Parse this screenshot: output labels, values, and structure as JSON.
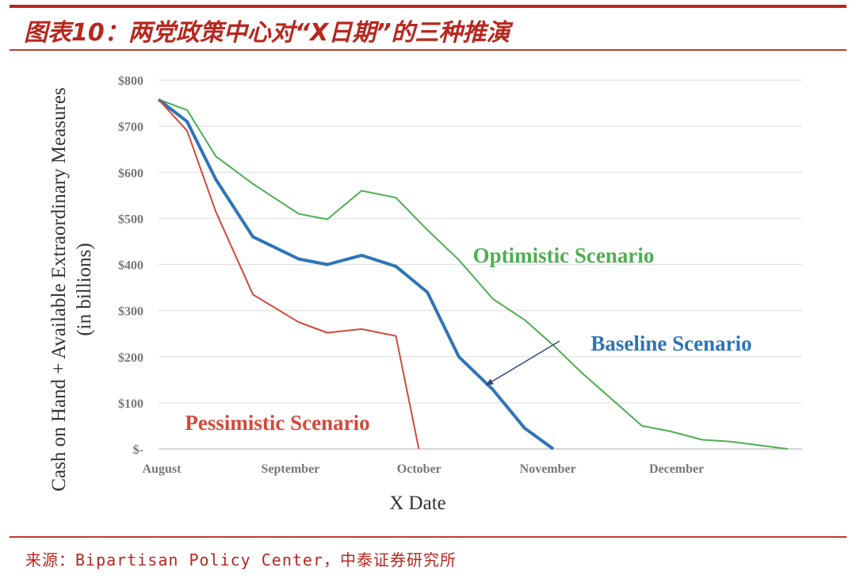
{
  "title": "图表10：两党政策中心对“X日期”的三种推演",
  "source": "来源：Bipartisan Policy Center，中泰证券研究所",
  "chart_data": {
    "type": "line",
    "xlabel": "X Date",
    "ylabel_line1": "Cash on Hand + Available Extraordinary Measures",
    "ylabel_line2": "(in billions)",
    "ylim": [
      0,
      800
    ],
    "y_ticks": [
      {
        "value": 0,
        "label": "$-"
      },
      {
        "value": 100,
        "label": "$100"
      },
      {
        "value": 200,
        "label": "$200"
      },
      {
        "value": 300,
        "label": "$300"
      },
      {
        "value": 400,
        "label": "$400"
      },
      {
        "value": 500,
        "label": "$500"
      },
      {
        "value": 600,
        "label": "$600"
      },
      {
        "value": 700,
        "label": "$700"
      },
      {
        "value": 800,
        "label": "$800"
      }
    ],
    "xlim": [
      0,
      22.5
    ],
    "x_ticks": [
      {
        "value": 0,
        "label": "August"
      },
      {
        "value": 4.5,
        "label": "September"
      },
      {
        "value": 9,
        "label": "October"
      },
      {
        "value": 13.5,
        "label": "November"
      },
      {
        "value": 18,
        "label": "December"
      }
    ],
    "grid": true,
    "series": [
      {
        "name": "Optimistic Scenario",
        "color": "#4caf50",
        "x": [
          0,
          1,
          2,
          3.3,
          4.9,
          5.9,
          7.1,
          8.3,
          9.4,
          10.5,
          11.7,
          12.8,
          13.8,
          14.8,
          15.9,
          16.9,
          17.9,
          19,
          20,
          21,
          22
        ],
        "y": [
          758,
          735,
          635,
          575,
          510,
          498,
          560,
          545,
          475,
          410,
          325,
          280,
          225,
          165,
          105,
          50,
          38,
          20,
          16,
          8,
          0
        ],
        "label_pos": [
          23,
          165
        ],
        "label_size": 27
      },
      {
        "name": "Baseline Scenario",
        "color": "#2f74b8",
        "x": [
          0,
          1,
          2,
          3.3,
          4.9,
          5.9,
          7.1,
          8.3,
          9.4,
          10.5,
          11.7,
          12.8,
          13.8
        ],
        "y": [
          758,
          710,
          585,
          460,
          412,
          400,
          420,
          396,
          340,
          200,
          128,
          45,
          0
        ],
        "label_pos": [
          24,
          100
        ],
        "label_size": 27
      },
      {
        "name": "Pessimistic Scenario",
        "color": "#d4493b",
        "x": [
          0,
          1,
          2,
          3.3,
          4.9,
          5.9,
          7.1,
          8.3,
          9.1
        ],
        "y": [
          758,
          690,
          515,
          335,
          275,
          252,
          260,
          245,
          0
        ],
        "label_pos": [
          17,
          2
        ],
        "label_size": 27
      }
    ],
    "arrow": {
      "from": [
        16.4,
        185
      ],
      "to": [
        12.4,
        140
      ],
      "color": "#2f4a78"
    }
  }
}
